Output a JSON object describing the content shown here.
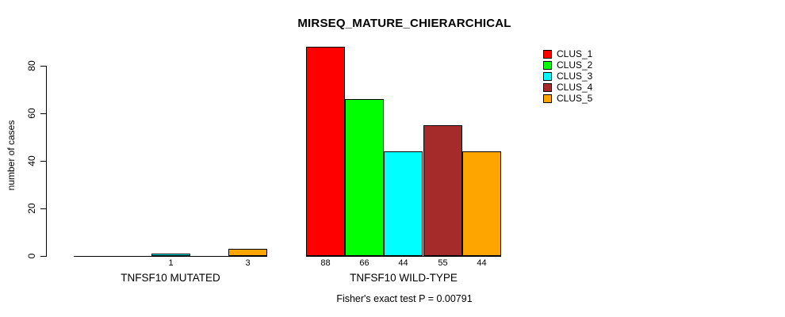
{
  "title": "MIRSEQ_MATURE_CHIERARCHICAL",
  "chart_data": {
    "type": "bar",
    "title": "MIRSEQ_MATURE_CHIERARCHICAL",
    "ylabel": "number of cases",
    "xlabel": "",
    "ylim": [
      0,
      88
    ],
    "yticks": [
      0,
      20,
      40,
      60,
      80
    ],
    "grid": false,
    "legend_position": "top-right",
    "categories": [
      "CLUS_1",
      "CLUS_2",
      "CLUS_3",
      "CLUS_4",
      "CLUS_5"
    ],
    "colors": [
      "#ff0000",
      "#00ff00",
      "#00ffff",
      "#a52a2a",
      "#ffa500"
    ],
    "groups": [
      {
        "label": "TNFSF10 MUTATED",
        "values": [
          0,
          0,
          1,
          0,
          3
        ],
        "bar_labels": [
          "",
          "",
          "1",
          "",
          "3"
        ]
      },
      {
        "label": "TNFSF10 WILD-TYPE",
        "values": [
          88,
          66,
          44,
          55,
          44
        ],
        "bar_labels": [
          "88",
          "66",
          "44",
          "55",
          "44"
        ]
      }
    ],
    "annotation": "Fisher's exact test P = 0.00791"
  }
}
